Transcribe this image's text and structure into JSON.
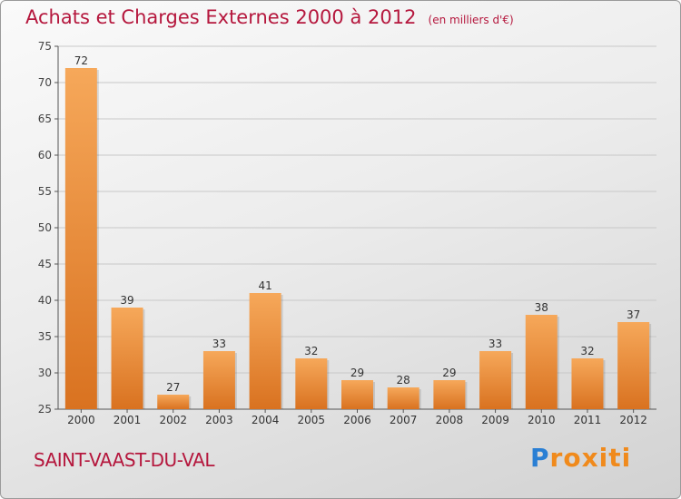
{
  "header": {
    "title": "Achats et Charges Externes 2000 à 2012",
    "unit": "(en milliers d'€)"
  },
  "footer": {
    "city": "SAINT-VAAST-DU-VAL",
    "logo_text": "Proxiti",
    "logo_first_letter": "P",
    "logo_rest": "roxiti"
  },
  "colors": {
    "title": "#b5173d",
    "bar_light": "#f6a85a",
    "bar_dark": "#d97220",
    "grid": "#c8c8c8",
    "logo_blue": "#2a7fd4",
    "logo_orange": "#f08a1c"
  },
  "chart_data": {
    "type": "bar",
    "title": "Achats et Charges Externes 2000 à 2012",
    "subtitle": "(en milliers d'€)",
    "xlabel": "",
    "ylabel": "",
    "categories": [
      "2000",
      "2001",
      "2002",
      "2003",
      "2004",
      "2005",
      "2006",
      "2007",
      "2008",
      "2009",
      "2010",
      "2011",
      "2012"
    ],
    "values": [
      72,
      39,
      27,
      33,
      41,
      32,
      29,
      28,
      29,
      33,
      38,
      32,
      37
    ],
    "ylim": [
      25,
      75
    ],
    "yticks": [
      25,
      30,
      35,
      40,
      45,
      50,
      55,
      60,
      65,
      70,
      75
    ],
    "grid": true,
    "legend": "none"
  }
}
